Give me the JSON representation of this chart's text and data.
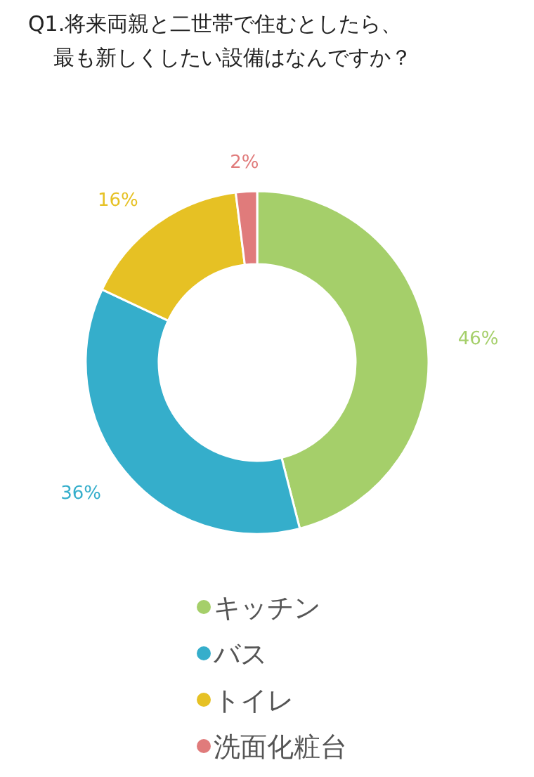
{
  "chart_data": {
    "type": "donut",
    "title": "Q1.将来両親と二世帯で住むとしたら、",
    "subtitle": "最も新しくしたい設備はなんですか？",
    "categories": [
      "キッチン",
      "バス",
      "トイレ",
      "洗面化粧台"
    ],
    "values": [
      46,
      36,
      16,
      2
    ],
    "value_labels": [
      "46%",
      "36%",
      "16%",
      "2%"
    ],
    "colors": [
      "#a5cf6a",
      "#35aecb",
      "#e6c124",
      "#e07b7b"
    ],
    "legend": "bottom"
  }
}
